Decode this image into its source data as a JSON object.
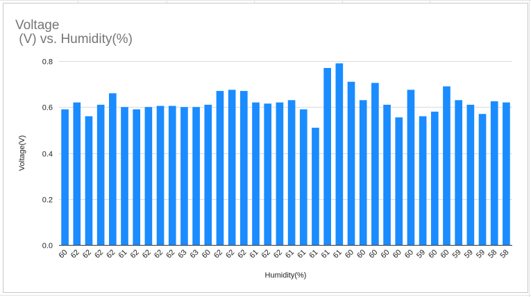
{
  "chart_data": {
    "type": "bar",
    "title": "Voltage\n (V) vs. Humidity(%)",
    "xlabel": "Humidity(%)",
    "ylabel": "Voltage(V)",
    "ylim": [
      0,
      0.8
    ],
    "yticks": [
      "0.0",
      "0.2",
      "0.4",
      "0.6",
      "0.8"
    ],
    "grid": true,
    "bar_color": "#1a8cff",
    "categories": [
      "60",
      "62",
      "62",
      "62",
      "62",
      "61",
      "62",
      "62",
      "62",
      "62",
      "63",
      "63",
      "60",
      "62",
      "62",
      "62",
      "61",
      "62",
      "62",
      "61",
      "61",
      "61",
      "61",
      "61",
      "60",
      "60",
      "60",
      "60",
      "60",
      "60",
      "59",
      "60",
      "60",
      "59",
      "59",
      "59",
      "58",
      "58"
    ],
    "values": [
      0.59,
      0.62,
      0.56,
      0.61,
      0.66,
      0.6,
      0.59,
      0.6,
      0.605,
      0.605,
      0.6,
      0.6,
      0.61,
      0.67,
      0.675,
      0.67,
      0.62,
      0.615,
      0.62,
      0.63,
      0.59,
      0.51,
      0.77,
      0.79,
      0.71,
      0.63,
      0.705,
      0.61,
      0.555,
      0.675,
      0.56,
      0.58,
      0.69,
      0.63,
      0.61,
      0.57,
      0.625,
      0.62
    ]
  },
  "colors": {
    "gridline": "#d9d9d9",
    "axis": "#333333",
    "text": "#222222",
    "title": "#757575"
  }
}
